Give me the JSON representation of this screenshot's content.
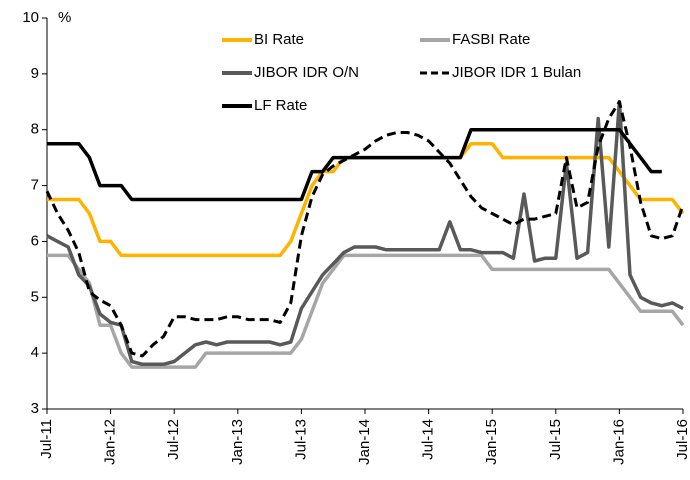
{
  "chart_data": {
    "type": "line",
    "y_unit_label": "%",
    "categories": [
      "Jul-11",
      null,
      null,
      null,
      null,
      null,
      "Jan-12",
      null,
      null,
      null,
      null,
      null,
      "Jul-12",
      null,
      null,
      null,
      null,
      null,
      "Jan-13",
      null,
      null,
      null,
      null,
      null,
      "Jul-13",
      null,
      null,
      null,
      null,
      null,
      "Jan-14",
      null,
      null,
      null,
      null,
      null,
      "Jul-14",
      null,
      null,
      null,
      null,
      null,
      "Jan-15",
      null,
      null,
      null,
      null,
      null,
      "Jul-15",
      null,
      null,
      null,
      null,
      null,
      "Jan-16",
      null,
      null,
      null,
      null,
      null,
      "Jul-16"
    ],
    "ylim": [
      3,
      10
    ],
    "yticks": [
      3,
      4,
      5,
      6,
      7,
      8,
      9,
      10
    ],
    "grid": false,
    "series": [
      {
        "name": "BI Rate",
        "color": "#ffb300",
        "dash": false,
        "values": [
          6.75,
          6.75,
          6.75,
          6.75,
          6.5,
          6.0,
          6.0,
          5.75,
          5.75,
          5.75,
          5.75,
          5.75,
          5.75,
          5.75,
          5.75,
          5.75,
          5.75,
          5.75,
          5.75,
          5.75,
          5.75,
          5.75,
          5.75,
          6.0,
          6.5,
          7.0,
          7.25,
          7.25,
          7.5,
          7.5,
          7.5,
          7.5,
          7.5,
          7.5,
          7.5,
          7.5,
          7.5,
          7.5,
          7.5,
          7.5,
          7.75,
          7.75,
          7.75,
          7.5,
          7.5,
          7.5,
          7.5,
          7.5,
          7.5,
          7.5,
          7.5,
          7.5,
          7.5,
          7.5,
          7.25,
          7.0,
          6.75,
          6.75,
          6.75,
          6.75,
          6.5
        ]
      },
      {
        "name": "FASBI Rate",
        "color": "#a6a6a6",
        "dash": false,
        "values": [
          5.75,
          5.75,
          5.75,
          5.5,
          5.25,
          4.5,
          4.5,
          4.0,
          3.75,
          3.75,
          3.75,
          3.75,
          3.75,
          3.75,
          3.75,
          4.0,
          4.0,
          4.0,
          4.0,
          4.0,
          4.0,
          4.0,
          4.0,
          4.0,
          4.25,
          4.75,
          5.25,
          5.5,
          5.75,
          5.75,
          5.75,
          5.75,
          5.75,
          5.75,
          5.75,
          5.75,
          5.75,
          5.75,
          5.75,
          5.75,
          5.75,
          5.75,
          5.5,
          5.5,
          5.5,
          5.5,
          5.5,
          5.5,
          5.5,
          5.5,
          5.5,
          5.5,
          5.5,
          5.5,
          5.25,
          5.0,
          4.75,
          4.75,
          4.75,
          4.75,
          4.5
        ]
      },
      {
        "name": "JIBOR IDR O/N",
        "color": "#595959",
        "dash": false,
        "values": [
          6.1,
          6.0,
          5.9,
          5.4,
          5.2,
          4.7,
          4.55,
          4.5,
          3.85,
          3.8,
          3.8,
          3.8,
          3.85,
          4.0,
          4.15,
          4.2,
          4.15,
          4.2,
          4.2,
          4.2,
          4.2,
          4.2,
          4.15,
          4.2,
          4.8,
          5.1,
          5.4,
          5.6,
          5.8,
          5.9,
          5.9,
          5.9,
          5.85,
          5.85,
          5.85,
          5.85,
          5.85,
          5.85,
          6.35,
          5.85,
          5.85,
          5.8,
          5.8,
          5.8,
          5.7,
          6.85,
          5.65,
          5.7,
          5.7,
          7.4,
          5.7,
          5.8,
          8.2,
          5.9,
          8.5,
          5.4,
          5.0,
          4.9,
          4.85,
          4.9,
          4.8
        ]
      },
      {
        "name": "JIBOR IDR 1 Bulan",
        "color": "#000000",
        "dash": true,
        "values": [
          6.9,
          6.5,
          6.2,
          5.8,
          5.1,
          4.95,
          4.85,
          4.5,
          4.0,
          3.95,
          4.15,
          4.3,
          4.65,
          4.65,
          4.6,
          4.6,
          4.6,
          4.65,
          4.65,
          4.6,
          4.6,
          4.6,
          4.55,
          4.9,
          6.1,
          6.8,
          7.2,
          7.35,
          7.45,
          7.55,
          7.65,
          7.8,
          7.9,
          7.95,
          7.95,
          7.9,
          7.8,
          7.6,
          7.4,
          7.1,
          6.8,
          6.6,
          6.5,
          6.4,
          6.3,
          6.4,
          6.4,
          6.45,
          6.5,
          7.5,
          6.6,
          6.7,
          7.7,
          8.2,
          8.5,
          7.7,
          6.7,
          6.1,
          6.05,
          6.1,
          6.65
        ]
      },
      {
        "name": "LF Rate",
        "color": "#000000",
        "dash": false,
        "values": [
          7.75,
          7.75,
          7.75,
          7.75,
          7.5,
          7.0,
          7.0,
          7.0,
          6.75,
          6.75,
          6.75,
          6.75,
          6.75,
          6.75,
          6.75,
          6.75,
          6.75,
          6.75,
          6.75,
          6.75,
          6.75,
          6.75,
          6.75,
          6.75,
          6.75,
          7.25,
          7.25,
          7.5,
          7.5,
          7.5,
          7.5,
          7.5,
          7.5,
          7.5,
          7.5,
          7.5,
          7.5,
          7.5,
          7.5,
          7.5,
          8.0,
          8.0,
          8.0,
          8.0,
          8.0,
          8.0,
          8.0,
          8.0,
          8.0,
          8.0,
          8.0,
          8.0,
          8.0,
          8.0,
          8.0,
          7.75,
          7.5,
          7.25,
          7.25,
          null,
          null
        ]
      }
    ]
  }
}
